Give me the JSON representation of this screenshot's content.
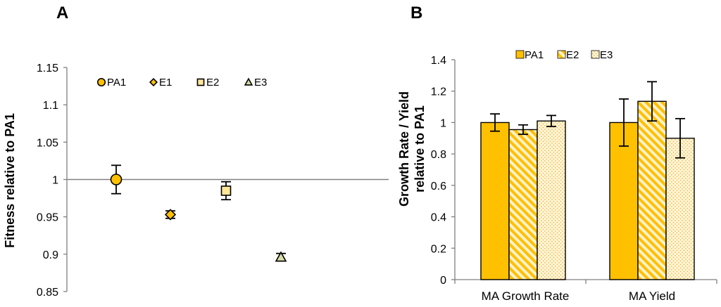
{
  "colors": {
    "gold": "#FFC000",
    "light_yellow": "#FFE699",
    "pale_yellow": "#FFF2CC",
    "olive": "#D6DCA4",
    "axis": "#808080",
    "black": "#000000"
  },
  "chart_data": [
    {
      "panel": "A",
      "type": "scatter",
      "title": "",
      "xlabel": "",
      "ylabel": "Fitness relative to PA1",
      "ylim": [
        0.85,
        1.15
      ],
      "yticks": [
        "0.85",
        "0.9",
        "0.95",
        "1",
        "1.05",
        "1.1",
        "1.15"
      ],
      "reference_line": 1.0,
      "legend_position": "top",
      "series": [
        {
          "name": "PA1",
          "marker": "circle",
          "value": 1.0,
          "error": 0.019
        },
        {
          "name": "E1",
          "marker": "diamond",
          "value": 0.953,
          "error": 0.005
        },
        {
          "name": "E2",
          "marker": "square",
          "value": 0.985,
          "error": 0.012
        },
        {
          "name": "E3",
          "marker": "triangle",
          "value": 0.896,
          "error": 0.005
        }
      ]
    },
    {
      "panel": "B",
      "type": "bar",
      "title": "",
      "xlabel": "",
      "ylabel_line1": "Growth Rate / Yield",
      "ylabel_line2": "relative to PA1",
      "ylim": [
        0,
        1.4
      ],
      "yticks": [
        "0",
        "0.2",
        "0.4",
        "0.6",
        "0.8",
        "1",
        "1.2",
        "1.4"
      ],
      "categories": [
        "MA Growth Rate",
        "MA Yield"
      ],
      "legend_position": "top",
      "series": [
        {
          "name": "PA1",
          "fill": "solid",
          "values": [
            1.0,
            1.0
          ],
          "errors": [
            0.055,
            0.15
          ]
        },
        {
          "name": "E2",
          "fill": "diagonal",
          "values": [
            0.955,
            1.135
          ],
          "errors": [
            0.03,
            0.125
          ]
        },
        {
          "name": "E3",
          "fill": "dotted",
          "values": [
            1.01,
            0.9
          ],
          "errors": [
            0.035,
            0.125
          ]
        }
      ]
    }
  ]
}
